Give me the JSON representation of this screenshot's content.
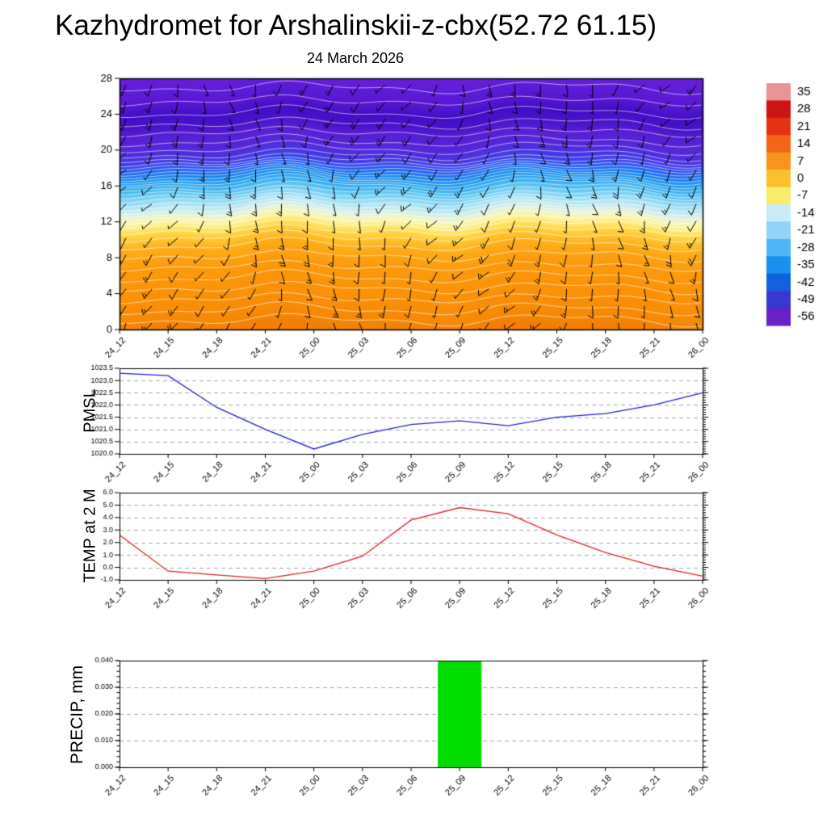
{
  "header": {
    "title": "Kazhydromet for Arshalinskii-z-cbx(52.72 61.15)",
    "date": "24 March 2026"
  },
  "chart_data": [
    {
      "id": "cross_section",
      "type": "heatmap",
      "subtitle": "24 March 2026",
      "categories": [
        "24_12",
        "24_15",
        "24_18",
        "24_21",
        "25_00",
        "25_03",
        "25_06",
        "25_09",
        "25_12",
        "25_15",
        "25_18",
        "25_21",
        "26_00"
      ],
      "y_ticks": [
        0,
        4,
        8,
        12,
        16,
        20,
        24,
        28
      ],
      "ylim": [
        0,
        28
      ],
      "colorbar": {
        "labels": [
          "35",
          "28",
          "21",
          "14",
          "7",
          "0",
          "-7",
          "-14",
          "-21",
          "-28",
          "-35",
          "-42",
          "-49",
          "-56"
        ],
        "colors": [
          "#e89494",
          "#cc1414",
          "#e63214",
          "#f26418",
          "#f8941c",
          "#f8c02c",
          "#f8ec6c",
          "#c8ecf8",
          "#90d4f8",
          "#50b4f8",
          "#1890f0",
          "#1060e0",
          "#3838d0",
          "#6820c8"
        ]
      },
      "gradient_stops": [
        [
          0,
          "#f07f04"
        ],
        [
          1.5,
          "#f68a06"
        ],
        [
          4,
          "#fa9208"
        ],
        [
          7,
          "#fb9a0d"
        ],
        [
          9,
          "#fdaa17"
        ],
        [
          10,
          "#febf2a"
        ],
        [
          10.8,
          "#fed343"
        ],
        [
          11.4,
          "#fee465"
        ],
        [
          11.9,
          "#fdf08d"
        ],
        [
          12.4,
          "#f9f5b5"
        ],
        [
          12.9,
          "#e9f3d2"
        ],
        [
          13.5,
          "#cdeef0"
        ],
        [
          14.3,
          "#a5e1f6"
        ],
        [
          15.2,
          "#70cdf2"
        ],
        [
          16.1,
          "#3db3ef"
        ],
        [
          16.9,
          "#2198ee"
        ],
        [
          17.5,
          "#1d7fee"
        ],
        [
          18.1,
          "#2c5ff0"
        ],
        [
          18.7,
          "#3f46ea"
        ],
        [
          19.5,
          "#4c33e0"
        ],
        [
          20.6,
          "#5527d9"
        ],
        [
          22,
          "#571ed2"
        ],
        [
          23.2,
          "#4812c9"
        ],
        [
          24.2,
          "#430ec5"
        ],
        [
          25.2,
          "#5316cf"
        ],
        [
          26.5,
          "#5e1bd6"
        ],
        [
          28,
          "#651ed9"
        ]
      ],
      "contour_levels": [
        1,
        2.2,
        3.4,
        4.6,
        5.8,
        7,
        8.2,
        9.4,
        10.3,
        11,
        11.6,
        12.1,
        12.6,
        13,
        13.4,
        13.8,
        14.2,
        14.6,
        15,
        15.4,
        15.8,
        16.2,
        16.5,
        16.8,
        17.1,
        17.4,
        17.7,
        18,
        18.3,
        18.6,
        19,
        19.5,
        20.2,
        21,
        22,
        23,
        24.2,
        25.5,
        27
      ],
      "contour_color": "#ffffff",
      "wind_barbs": {
        "rows": 15,
        "cols": 23,
        "color": "#000000",
        "base_direction_deg": 195,
        "direction_variation_deg": 28
      }
    },
    {
      "id": "pmsl",
      "type": "line",
      "ylabel": "PMSL",
      "color": "#2222cc",
      "categories": [
        "24_12",
        "24_15",
        "24_18",
        "24_21",
        "25_00",
        "25_03",
        "25_06",
        "25_09",
        "25_12",
        "25_15",
        "25_18",
        "25_21",
        "26_00"
      ],
      "values": [
        1023.3,
        1023.2,
        1021.9,
        1021.0,
        1020.2,
        1020.8,
        1021.2,
        1021.35,
        1021.15,
        1021.5,
        1021.65,
        1022.0,
        1022.5
      ],
      "ylim": [
        1020.0,
        1023.5
      ],
      "y_ticks": [
        1020.0,
        1020.5,
        1021.0,
        1021.5,
        1022.0,
        1022.5,
        1023.0,
        1023.5
      ],
      "y_tick_labels": [
        "1020.0",
        "1020.5",
        "1021.0",
        "1021.5",
        "1022.0",
        "1022.5",
        "1023.0",
        "1023.5"
      ]
    },
    {
      "id": "temp2m",
      "type": "line",
      "ylabel": "TEMP at 2 M",
      "color": "#dd2222",
      "categories": [
        "24_12",
        "24_15",
        "24_18",
        "24_21",
        "25_00",
        "25_03",
        "25_06",
        "25_09",
        "25_12",
        "25_15",
        "25_18",
        "25_21",
        "26_00"
      ],
      "values": [
        2.6,
        -0.3,
        -0.6,
        -0.9,
        -0.3,
        0.9,
        3.8,
        4.8,
        4.3,
        2.6,
        1.2,
        0.1,
        -0.7
      ],
      "ylim": [
        -1.0,
        6.0
      ],
      "y_ticks": [
        -1,
        0,
        1,
        2,
        3,
        4,
        5,
        6
      ],
      "y_tick_labels": [
        "-1.0",
        "0.0",
        "1.0",
        "2.0",
        "3.0",
        "4.0",
        "5.0",
        "6.0"
      ]
    },
    {
      "id": "precip",
      "type": "bar",
      "ylabel": "PRECIP, mm",
      "color": "#00dd00",
      "categories": [
        "24_12",
        "24_15",
        "24_18",
        "24_21",
        "25_00",
        "25_03",
        "25_06",
        "25_09",
        "25_12",
        "25_15",
        "25_18",
        "25_21",
        "26_00"
      ],
      "values": [
        0,
        0,
        0,
        0,
        0,
        0,
        0,
        0.04,
        0,
        0,
        0,
        0,
        0
      ],
      "ylim": [
        0,
        0.04
      ],
      "y_ticks": [
        0,
        0.01,
        0.02,
        0.03,
        0.04
      ],
      "y_tick_labels": [
        "0.000",
        "0.010",
        "0.020",
        "0.030",
        "0.040"
      ]
    }
  ]
}
